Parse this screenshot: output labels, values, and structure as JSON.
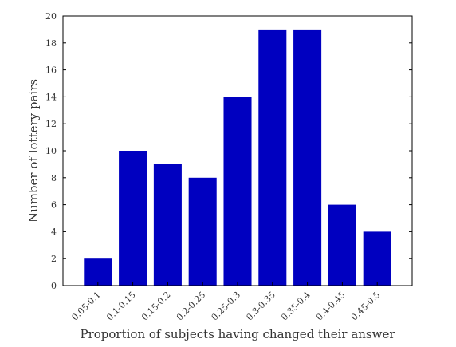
{
  "chart_data": {
    "type": "bar",
    "title": "",
    "xlabel": "Proportion of subjects having changed their answer",
    "ylabel": "Number of lottery pairs",
    "categories": [
      "0.05-0.1",
      "0.1-0.15",
      "0.15-0.2",
      "0.2-0.25",
      "0.25-0.3",
      "0.3-0.35",
      "0.35-0.4",
      "0.4-0.45",
      "0.45-0.5"
    ],
    "values": [
      2,
      10,
      9,
      8,
      14,
      19,
      19,
      6,
      4
    ],
    "ylim": [
      0,
      20
    ],
    "yticks": [
      "0",
      "2",
      "4",
      "6",
      "8",
      "10",
      "12",
      "14",
      "16",
      "18",
      "20"
    ],
    "bar_color": "#0000c0",
    "grid": false,
    "legend": "none"
  }
}
